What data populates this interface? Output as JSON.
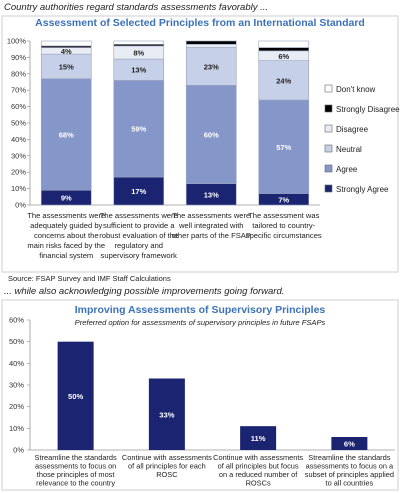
{
  "intro_caption": "Country authorities regard standards assessments favorably ...",
  "mid_caption": "... while also acknowledging possible improvements going forward.",
  "source": "Source: FSAP Survey and IMF Staff Calculations",
  "colors": {
    "strongly_agree": "#1b2470",
    "agree": "#8597c9",
    "neutral": "#c6d0e8",
    "disagree": "#e8ecf5",
    "strongly_disagree": "#000000",
    "dont_know": "#ffffff",
    "title": "#3b72b8",
    "bar2": "#1b2470"
  },
  "chart_data": [
    {
      "type": "bar",
      "stacked": true,
      "title": "Assessment of Selected Principles from an International Standard",
      "categories": [
        "The assessments were adequately guided by concerns about the main risks faced by the financial system",
        "The assessments were sufficient to provide a robust evaluation of the regulatory and supervisory framework",
        "The assessments were well integrated with other parts of the FSAP",
        "The assessment was tailored to country-specific circumstances"
      ],
      "category_lines": [
        [
          "The assessments were",
          "adequately guided by",
          "concerns about the",
          "main risks faced by the",
          "financial system"
        ],
        [
          "The assessments were",
          "sufficient to provide a",
          "robust evaluation of the",
          "regulatory and",
          "supervisory framework"
        ],
        [
          "The assessments were",
          "well integrated with",
          "other parts of the FSAP"
        ],
        [
          "The assessment was",
          "tailored to country-",
          "specific circumstances"
        ]
      ],
      "series": [
        {
          "name": "Strongly Agree",
          "values": [
            9,
            17,
            13,
            7
          ],
          "labels": [
            "9%",
            "17%",
            "13%",
            "7%"
          ]
        },
        {
          "name": "Agree",
          "values": [
            68,
            59,
            60,
            57
          ],
          "labels": [
            "68%",
            "59%",
            "60%",
            "57%"
          ]
        },
        {
          "name": "Neutral",
          "values": [
            15,
            13,
            23,
            24
          ],
          "labels": [
            "15%",
            "13%",
            "23%",
            "24%"
          ]
        },
        {
          "name": "Disagree",
          "values": [
            4,
            8,
            2,
            6
          ],
          "labels": [
            "4%",
            "8%",
            "",
            "6%"
          ]
        },
        {
          "name": "Strongly Disagree",
          "values": [
            1,
            1,
            2,
            2
          ],
          "labels": [
            "",
            "",
            "",
            ""
          ]
        },
        {
          "name": "Don't know",
          "values": [
            3,
            2,
            0,
            4
          ],
          "labels": [
            "",
            "",
            "",
            ""
          ]
        }
      ],
      "legend_order": [
        "Don't know",
        "Strongly Disagree",
        "Disagree",
        "Neutral",
        "Agree",
        "Strongly Agree"
      ],
      "yticks": [
        "0%",
        "10%",
        "20%",
        "30%",
        "40%",
        "50%",
        "60%",
        "70%",
        "80%",
        "90%",
        "100%"
      ],
      "ylim": [
        0,
        100
      ],
      "legend": "right",
      "grid": false
    },
    {
      "type": "bar",
      "title": "Improving Assessments of Supervisory Principles",
      "subtitle": "Preferred option for assessments of supervisory principles in future FSAPs",
      "categories": [
        "Streamline the standards assessments to focus on those principles of most relevance to the country",
        "Continue with assessments of all principles for each ROSC",
        "Continue with assessments of all principles but focus on a reduced number of ROSCs",
        "Streamline the standards assessments to focus on a subset of principles applied to all countries"
      ],
      "category_lines": [
        [
          "Streamline the standards",
          "assessments to focus on",
          "those principles of most",
          "relevance to the country"
        ],
        [
          "Continue with assessments",
          "of all principles for each",
          "ROSC"
        ],
        [
          "Continue with assessments",
          "of all principles but focus",
          "on a reduced number of",
          "ROSCs"
        ],
        [
          "Streamline the standards",
          "assessments to focus on a",
          "subset of principles applied",
          "to all countries"
        ]
      ],
      "values": [
        50,
        33,
        11,
        6
      ],
      "labels": [
        "50%",
        "33%",
        "11%",
        "6%"
      ],
      "yticks": [
        "0%",
        "10%",
        "20%",
        "30%",
        "40%",
        "50%",
        "60%"
      ],
      "ylim": [
        0,
        60
      ],
      "grid": false
    }
  ]
}
